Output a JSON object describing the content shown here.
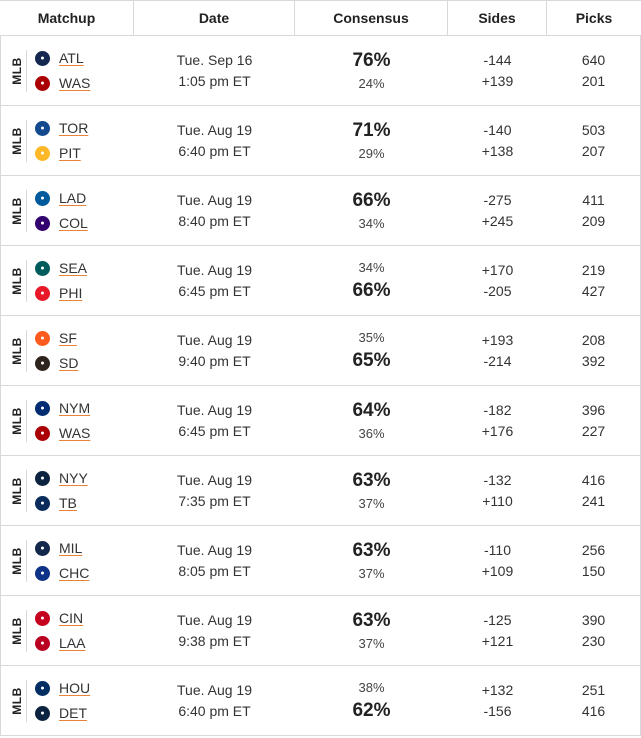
{
  "headers": {
    "matchup": "Matchup",
    "date": "Date",
    "consensus": "Consensus",
    "sides": "Sides",
    "picks": "Picks"
  },
  "rows": [
    {
      "league": "MLB",
      "away": {
        "abbr": "ATL",
        "icon": "braves-logo-icon",
        "color": "#13274F"
      },
      "home": {
        "abbr": "WAS",
        "icon": "nationals-logo-icon",
        "color": "#AB0003"
      },
      "day": "Tue. Sep 16",
      "time": "1:05 pm ET",
      "away_pct": "76%",
      "home_pct": "24%",
      "leader": "away",
      "away_side": "-144",
      "home_side": "+139",
      "away_picks": "640",
      "home_picks": "201"
    },
    {
      "league": "MLB",
      "away": {
        "abbr": "TOR",
        "icon": "blue-jays-logo-icon",
        "color": "#134A8E"
      },
      "home": {
        "abbr": "PIT",
        "icon": "pirates-logo-icon",
        "color": "#FDB827"
      },
      "day": "Tue. Aug 19",
      "time": "6:40 pm ET",
      "away_pct": "71%",
      "home_pct": "29%",
      "leader": "away",
      "away_side": "-140",
      "home_side": "+138",
      "away_picks": "503",
      "home_picks": "207"
    },
    {
      "league": "MLB",
      "away": {
        "abbr": "LAD",
        "icon": "dodgers-logo-icon",
        "color": "#005A9C"
      },
      "home": {
        "abbr": "COL",
        "icon": "rockies-logo-icon",
        "color": "#33006F"
      },
      "day": "Tue. Aug 19",
      "time": "8:40 pm ET",
      "away_pct": "66%",
      "home_pct": "34%",
      "leader": "away",
      "away_side": "-275",
      "home_side": "+245",
      "away_picks": "411",
      "home_picks": "209"
    },
    {
      "league": "MLB",
      "away": {
        "abbr": "SEA",
        "icon": "mariners-logo-icon",
        "color": "#005C5C"
      },
      "home": {
        "abbr": "PHI",
        "icon": "phillies-logo-icon",
        "color": "#E81828"
      },
      "day": "Tue. Aug 19",
      "time": "6:45 pm ET",
      "away_pct": "34%",
      "home_pct": "66%",
      "leader": "home",
      "away_side": "+170",
      "home_side": "-205",
      "away_picks": "219",
      "home_picks": "427"
    },
    {
      "league": "MLB",
      "away": {
        "abbr": "SF",
        "icon": "giants-logo-icon",
        "color": "#FD5A1E"
      },
      "home": {
        "abbr": "SD",
        "icon": "padres-logo-icon",
        "color": "#2F241D"
      },
      "day": "Tue. Aug 19",
      "time": "9:40 pm ET",
      "away_pct": "35%",
      "home_pct": "65%",
      "leader": "home",
      "away_side": "+193",
      "home_side": "-214",
      "away_picks": "208",
      "home_picks": "392"
    },
    {
      "league": "MLB",
      "away": {
        "abbr": "NYM",
        "icon": "mets-logo-icon",
        "color": "#002D72"
      },
      "home": {
        "abbr": "WAS",
        "icon": "nationals-logo-icon",
        "color": "#AB0003"
      },
      "day": "Tue. Aug 19",
      "time": "6:45 pm ET",
      "away_pct": "64%",
      "home_pct": "36%",
      "leader": "away",
      "away_side": "-182",
      "home_side": "+176",
      "away_picks": "396",
      "home_picks": "227"
    },
    {
      "league": "MLB",
      "away": {
        "abbr": "NYY",
        "icon": "yankees-logo-icon",
        "color": "#0C2340"
      },
      "home": {
        "abbr": "TB",
        "icon": "rays-logo-icon",
        "color": "#092C5C"
      },
      "day": "Tue. Aug 19",
      "time": "7:35 pm ET",
      "away_pct": "63%",
      "home_pct": "37%",
      "leader": "away",
      "away_side": "-132",
      "home_side": "+110",
      "away_picks": "416",
      "home_picks": "241"
    },
    {
      "league": "MLB",
      "away": {
        "abbr": "MIL",
        "icon": "brewers-logo-icon",
        "color": "#12284B"
      },
      "home": {
        "abbr": "CHC",
        "icon": "cubs-logo-icon",
        "color": "#0E3386"
      },
      "day": "Tue. Aug 19",
      "time": "8:05 pm ET",
      "away_pct": "63%",
      "home_pct": "37%",
      "leader": "away",
      "away_side": "-110",
      "home_side": "+109",
      "away_picks": "256",
      "home_picks": "150"
    },
    {
      "league": "MLB",
      "away": {
        "abbr": "CIN",
        "icon": "reds-logo-icon",
        "color": "#C6011F"
      },
      "home": {
        "abbr": "LAA",
        "icon": "angels-logo-icon",
        "color": "#BA0021"
      },
      "day": "Tue. Aug 19",
      "time": "9:38 pm ET",
      "away_pct": "63%",
      "home_pct": "37%",
      "leader": "away",
      "away_side": "-125",
      "home_side": "+121",
      "away_picks": "390",
      "home_picks": "230"
    },
    {
      "league": "MLB",
      "away": {
        "abbr": "HOU",
        "icon": "astros-logo-icon",
        "color": "#002D62"
      },
      "home": {
        "abbr": "DET",
        "icon": "tigers-logo-icon",
        "color": "#0C2340"
      },
      "day": "Tue. Aug 19",
      "time": "6:40 pm ET",
      "away_pct": "38%",
      "home_pct": "62%",
      "leader": "home",
      "away_side": "+132",
      "home_side": "-156",
      "away_picks": "251",
      "home_picks": "416"
    }
  ]
}
